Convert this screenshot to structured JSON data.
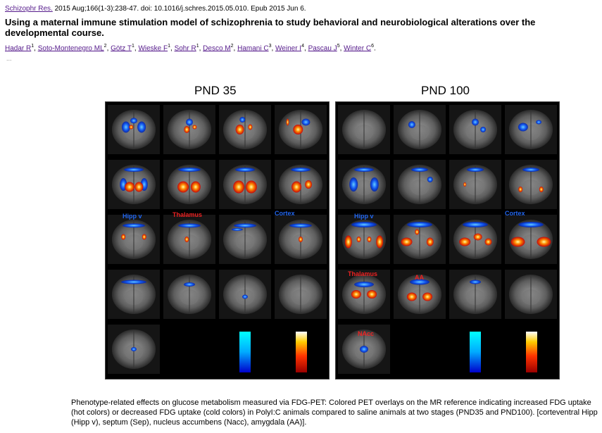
{
  "citation": {
    "journal": "Schizophr Res.",
    "details": " 2015 Aug;166(1-3):238-47. doi: 10.1016/j.schres.2015.05.010. Epub 2015 Jun 6."
  },
  "article_title": "Using a maternal immune stimulation model of schizophrenia to study behavioral and neurobiological alterations over the developmental course.",
  "authors": [
    {
      "name": "Hadar R",
      "sup": "1"
    },
    {
      "name": "Soto-Montenegro ML",
      "sup": "2"
    },
    {
      "name": "Götz T",
      "sup": "1"
    },
    {
      "name": "Wieske F",
      "sup": "1"
    },
    {
      "name": "Sohr R",
      "sup": "1"
    },
    {
      "name": "Desco M",
      "sup": "2"
    },
    {
      "name": "Hamani C",
      "sup": "3"
    },
    {
      "name": "Weiner I",
      "sup": "4"
    },
    {
      "name": "Pascau J",
      "sup": "5"
    },
    {
      "name": "Winter C",
      "sup": "6"
    }
  ],
  "ellipsis": "...",
  "figure": {
    "left_panel_title": "PND 35",
    "right_panel_title": "PND 100",
    "left_labels": {
      "hipp": "Hipp v",
      "thalamus": "Thalamus",
      "cortex": "Cortex"
    },
    "right_labels": {
      "hipp": "Hipp v",
      "cortex": "Cortex",
      "thalamus": "Thalamus",
      "aa": "AA",
      "nacc": "NAcc"
    }
  },
  "caption": "Phenotype-related effects on glucose metabolism measured via FDG-PET: Colored PET overlays on the MR reference indicating increased FDG uptake (hot colors) or decreased FDG uptake (cold colors) in PolyI:C animals compared to saline animals at two stages (PND35 and PND100). [corteventral Hipp (Hipp v),  septum (Sep), nucleus accumbens (Nacc), amygdala (AA)]."
}
